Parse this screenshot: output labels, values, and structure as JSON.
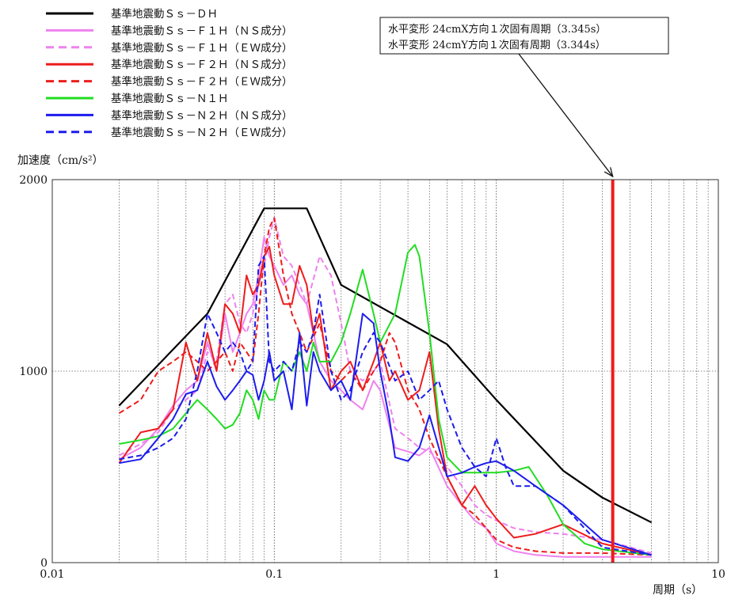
{
  "chart_data": {
    "type": "line",
    "xscale": "log",
    "xlim": [
      0.01,
      10
    ],
    "ylim": [
      0,
      2000
    ],
    "ylabel": "加速度（cm/s²）",
    "xlabel": "周期（s）",
    "xticks": [
      {
        "value": 0.01,
        "label": "0.01"
      },
      {
        "value": 0.1,
        "label": "0.1"
      },
      {
        "value": 1,
        "label": "1"
      },
      {
        "value": 10,
        "label": "10"
      }
    ],
    "yticks": [
      {
        "value": 0,
        "label": "0"
      },
      {
        "value": 1000,
        "label": "1000"
      },
      {
        "value": 2000,
        "label": "2000"
      }
    ],
    "grid": {
      "x_minor": true,
      "y_major": true
    },
    "legend_position": "top-left, above plot",
    "annotation": {
      "lines": [
        "水平変形 24cmX方向１次固有周期（3.345s）",
        "水平変形 24cmY方向１次固有周期（3.344s）"
      ],
      "period": 3.345,
      "line_color": "#ee1c1c"
    },
    "series": [
      {
        "name": "基準地震動Ｓｓ－ＤＨ",
        "color": "#000000",
        "dash": "solid",
        "x": [
          0.02,
          0.05,
          0.09,
          0.14,
          0.2,
          0.6,
          1.0,
          2.0,
          3.0,
          5.0
        ],
        "y": [
          820,
          1300,
          1850,
          1850,
          1450,
          1140,
          850,
          480,
          340,
          210
        ]
      },
      {
        "name": "基準地震動Ｓｓ－Ｆ１Ｈ（ＮＳ成分）",
        "color": "#ee82ee",
        "dash": "solid",
        "x": [
          0.02,
          0.025,
          0.03,
          0.035,
          0.04,
          0.045,
          0.05,
          0.055,
          0.06,
          0.065,
          0.07,
          0.075,
          0.08,
          0.085,
          0.09,
          0.095,
          0.1,
          0.11,
          0.12,
          0.13,
          0.14,
          0.15,
          0.16,
          0.18,
          0.2,
          0.22,
          0.25,
          0.28,
          0.3,
          0.35,
          0.4,
          0.45,
          0.5,
          0.6,
          0.7,
          0.8,
          0.9,
          1.0,
          1.2,
          1.5,
          2.0,
          3.0,
          5.0
        ],
        "y": [
          540,
          600,
          700,
          820,
          900,
          950,
          1150,
          1000,
          1300,
          1100,
          1200,
          1300,
          1350,
          1500,
          1700,
          1600,
          1550,
          1450,
          1500,
          1400,
          1350,
          1200,
          1050,
          950,
          900,
          850,
          800,
          950,
          900,
          600,
          580,
          560,
          600,
          400,
          300,
          220,
          180,
          100,
          60,
          40,
          30,
          30,
          30
        ]
      },
      {
        "name": "基準地震動Ｓｓ－Ｆ１Ｈ（ＥＷ成分）",
        "color": "#ee82ee",
        "dash": "dashed",
        "x": [
          0.02,
          0.025,
          0.03,
          0.035,
          0.04,
          0.045,
          0.05,
          0.055,
          0.06,
          0.065,
          0.07,
          0.075,
          0.08,
          0.085,
          0.09,
          0.095,
          0.1,
          0.11,
          0.12,
          0.13,
          0.14,
          0.16,
          0.18,
          0.2,
          0.22,
          0.25,
          0.28,
          0.3,
          0.35,
          0.4,
          0.45,
          0.5,
          0.6,
          0.7,
          0.8,
          0.9,
          1.0,
          1.2,
          1.5,
          2.0,
          3.0,
          5.0
        ],
        "y": [
          560,
          620,
          680,
          800,
          850,
          900,
          1100,
          1050,
          1350,
          1400,
          1250,
          1200,
          1300,
          1450,
          1550,
          1700,
          1800,
          1600,
          1550,
          1450,
          1350,
          1600,
          1500,
          1250,
          1000,
          950,
          1000,
          1050,
          700,
          650,
          600,
          580,
          500,
          400,
          300,
          250,
          220,
          180,
          160,
          150,
          120,
          50
        ]
      },
      {
        "name": "基準地震動Ｓｓ－Ｆ２Ｈ（ＮＳ成分）",
        "color": "#ee1c1c",
        "dash": "solid",
        "x": [
          0.02,
          0.025,
          0.03,
          0.035,
          0.04,
          0.045,
          0.05,
          0.055,
          0.06,
          0.065,
          0.07,
          0.075,
          0.08,
          0.085,
          0.09,
          0.095,
          0.1,
          0.11,
          0.12,
          0.13,
          0.14,
          0.15,
          0.16,
          0.18,
          0.2,
          0.22,
          0.25,
          0.28,
          0.3,
          0.33,
          0.35,
          0.4,
          0.45,
          0.5,
          0.55,
          0.6,
          0.7,
          0.8,
          0.9,
          1.0,
          1.2,
          1.5,
          2.0,
          3.0,
          5.0
        ],
        "y": [
          520,
          680,
          700,
          800,
          1150,
          950,
          1200,
          1000,
          1350,
          1300,
          1200,
          1500,
          1400,
          1450,
          1600,
          1650,
          1500,
          1350,
          1350,
          1550,
          1450,
          1200,
          1300,
          900,
          1000,
          1050,
          900,
          1050,
          1150,
          950,
          1000,
          850,
          900,
          1100,
          700,
          450,
          300,
          400,
          300,
          230,
          130,
          150,
          200,
          100,
          40
        ]
      },
      {
        "name": "基準地震動Ｓｓ－Ｆ２Ｈ（ＥＷ成分）",
        "color": "#ee1c1c",
        "dash": "dashed",
        "x": [
          0.02,
          0.025,
          0.03,
          0.035,
          0.04,
          0.045,
          0.05,
          0.055,
          0.06,
          0.065,
          0.07,
          0.075,
          0.08,
          0.085,
          0.09,
          0.095,
          0.1,
          0.11,
          0.12,
          0.13,
          0.14,
          0.16,
          0.18,
          0.2,
          0.22,
          0.25,
          0.28,
          0.3,
          0.33,
          0.35,
          0.4,
          0.45,
          0.5,
          0.6,
          0.7,
          0.8,
          0.9,
          1.0,
          1.2,
          1.5,
          2.0,
          3.0,
          5.0
        ],
        "y": [
          780,
          850,
          1000,
          1050,
          1100,
          1050,
          1000,
          1050,
          1100,
          1000,
          1150,
          1100,
          1050,
          1300,
          1600,
          1750,
          1800,
          1500,
          1300,
          1200,
          1100,
          1250,
          1000,
          950,
          1000,
          900,
          1000,
          1050,
          1200,
          1150,
          900,
          800,
          650,
          450,
          300,
          250,
          180,
          120,
          80,
          60,
          50,
          50,
          40
        ]
      },
      {
        "name": "基準地震動Ｓｓ－Ｎ１Ｈ",
        "color": "#22dd22",
        "dash": "solid",
        "x": [
          0.02,
          0.025,
          0.03,
          0.035,
          0.04,
          0.045,
          0.05,
          0.055,
          0.06,
          0.065,
          0.07,
          0.075,
          0.08,
          0.085,
          0.09,
          0.095,
          0.1,
          0.11,
          0.12,
          0.13,
          0.14,
          0.15,
          0.16,
          0.18,
          0.2,
          0.22,
          0.25,
          0.28,
          0.3,
          0.35,
          0.4,
          0.43,
          0.45,
          0.5,
          0.55,
          0.6,
          0.7,
          0.8,
          0.9,
          1.0,
          1.2,
          1.4,
          1.7,
          2.0,
          2.5,
          3.0,
          5.0
        ],
        "y": [
          620,
          640,
          660,
          700,
          780,
          850,
          800,
          750,
          700,
          720,
          780,
          900,
          850,
          750,
          900,
          850,
          850,
          1050,
          1000,
          1100,
          1000,
          1150,
          1050,
          1050,
          1150,
          1300,
          1530,
          1300,
          1150,
          1300,
          1620,
          1660,
          1600,
          1200,
          750,
          550,
          470,
          470,
          470,
          470,
          480,
          500,
          350,
          200,
          100,
          70,
          40
        ]
      },
      {
        "name": "基準地震動Ｓｓ－Ｎ２Ｈ（ＮＳ成分）",
        "color": "#1c1cee",
        "dash": "solid",
        "x": [
          0.02,
          0.025,
          0.03,
          0.035,
          0.04,
          0.045,
          0.05,
          0.055,
          0.06,
          0.065,
          0.07,
          0.075,
          0.08,
          0.085,
          0.09,
          0.095,
          0.1,
          0.11,
          0.12,
          0.13,
          0.14,
          0.15,
          0.16,
          0.18,
          0.2,
          0.22,
          0.25,
          0.28,
          0.3,
          0.33,
          0.35,
          0.4,
          0.45,
          0.5,
          0.6,
          0.7,
          0.8,
          0.9,
          1.0,
          1.2,
          1.5,
          2.0,
          3.0,
          5.0
        ],
        "y": [
          520,
          540,
          650,
          750,
          880,
          900,
          1050,
          920,
          850,
          900,
          950,
          1000,
          980,
          850,
          950,
          1100,
          950,
          1000,
          800,
          1200,
          820,
          1100,
          1000,
          900,
          950,
          850,
          1300,
          1250,
          1000,
          750,
          550,
          530,
          600,
          770,
          450,
          470,
          500,
          520,
          530,
          480,
          400,
          300,
          120,
          40
        ]
      },
      {
        "name": "基準地震動Ｓｓ－Ｎ２Ｈ（ＥＷ成分）",
        "color": "#1c1cee",
        "dash": "dashed",
        "x": [
          0.02,
          0.025,
          0.03,
          0.035,
          0.04,
          0.045,
          0.05,
          0.055,
          0.06,
          0.065,
          0.07,
          0.075,
          0.08,
          0.085,
          0.09,
          0.095,
          0.1,
          0.11,
          0.12,
          0.13,
          0.14,
          0.15,
          0.16,
          0.18,
          0.2,
          0.22,
          0.25,
          0.28,
          0.3,
          0.35,
          0.4,
          0.45,
          0.5,
          0.55,
          0.6,
          0.7,
          0.8,
          0.9,
          1.0,
          1.1,
          1.2,
          1.5,
          2.0,
          3.0,
          5.0
        ],
        "y": [
          540,
          560,
          600,
          650,
          750,
          1000,
          1300,
          1200,
          1100,
          1150,
          1100,
          1000,
          1050,
          1550,
          1600,
          1050,
          1000,
          1050,
          1000,
          1150,
          1100,
          1200,
          1400,
          1000,
          850,
          900,
          1100,
          1200,
          1150,
          950,
          1000,
          850,
          900,
          950,
          800,
          600,
          500,
          450,
          650,
          500,
          400,
          400,
          300,
          80,
          40
        ]
      }
    ]
  }
}
